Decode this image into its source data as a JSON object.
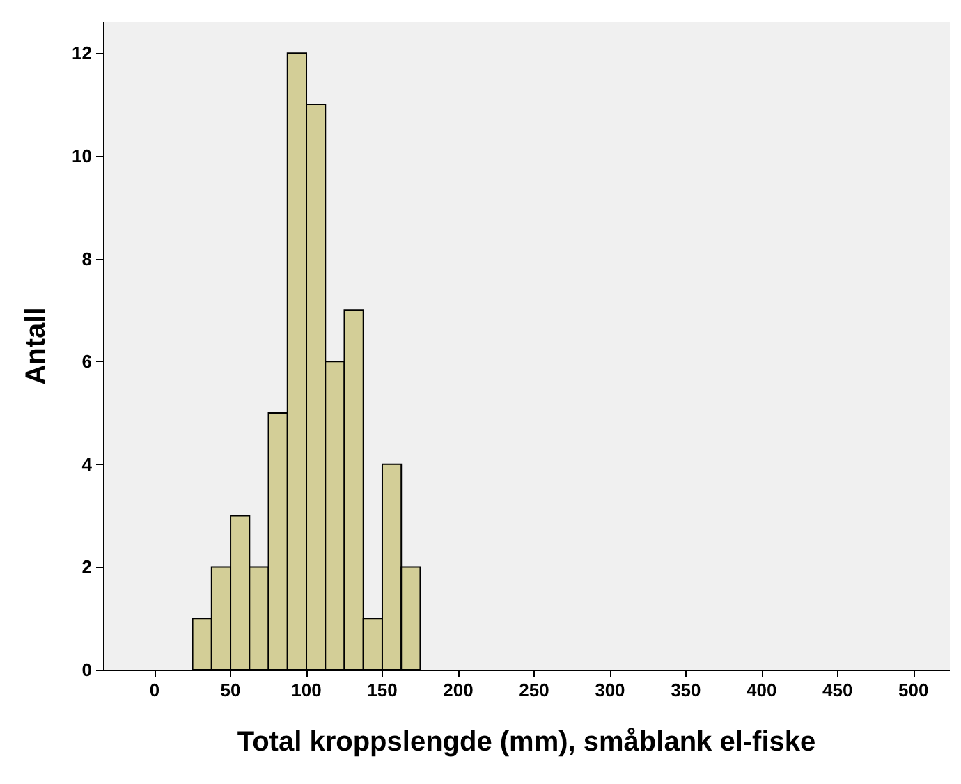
{
  "chart_data": {
    "type": "histogram",
    "xlabel": "Total kroppslengde (mm), småblank el-fiske",
    "ylabel": "Antall",
    "bins": [
      25,
      37.5,
      50,
      62.5,
      75,
      87.5,
      100,
      112.5,
      125,
      137.5,
      150,
      162.5,
      175
    ],
    "values": [
      1,
      2,
      3,
      2,
      5,
      12,
      11,
      6,
      7,
      1,
      4,
      2
    ],
    "color": "#d3ce97",
    "xlim": [
      -34,
      524
    ],
    "xticks": [
      0,
      50,
      100,
      150,
      200,
      250,
      300,
      350,
      400,
      450,
      500
    ],
    "ylim": [
      0,
      12.6
    ],
    "yticks": [
      0,
      2,
      4,
      6,
      8,
      10,
      12
    ],
    "grid": false
  }
}
